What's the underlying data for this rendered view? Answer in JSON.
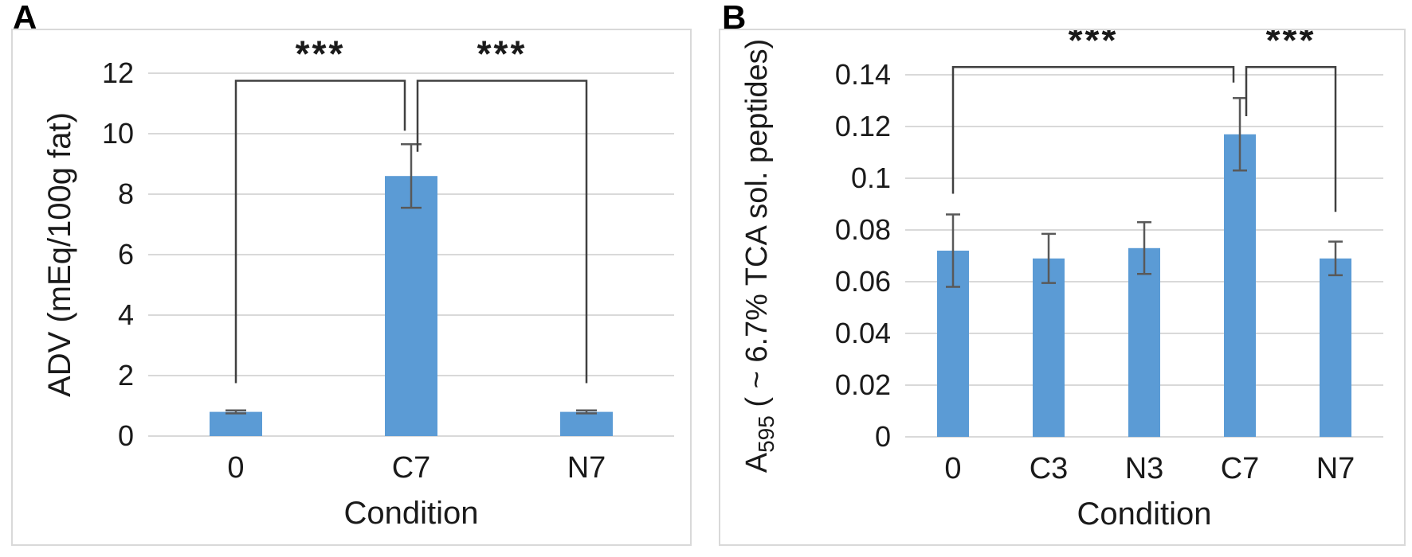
{
  "figure": {
    "background": "#ffffff",
    "bar_color": "#5B9BD5",
    "error_bar_color": "#595959",
    "bracket_color": "#404040",
    "gridline_color": "#d9d9d9",
    "panel_border_color": "#d9d9d9",
    "text_color": "#1a1a1a"
  },
  "chart_data": [
    {
      "type": "bar",
      "panel_label": "A",
      "title": "",
      "categories": [
        "0",
        "C7",
        "N7"
      ],
      "values": [
        0.8,
        8.6,
        0.8
      ],
      "errors": [
        0.05,
        1.05,
        0.05
      ],
      "xlabel": "Condition",
      "ylabel": "ADV (mEq/100g fat)",
      "ylim": [
        0,
        12
      ],
      "yticks": [
        0,
        2,
        4,
        6,
        8,
        10,
        12
      ],
      "ytick_labels": [
        "0",
        "2",
        "4",
        "6",
        "8",
        "10",
        "12"
      ],
      "grid": true,
      "legend": "none",
      "bar_color": "#5B9BD5",
      "significance": [
        {
          "from": "0",
          "to": "C7",
          "label": "***",
          "top": 11.75,
          "left_drop": 1.75,
          "right_drop": 10.1
        },
        {
          "from": "C7",
          "to": "N7",
          "label": "***",
          "top": 11.75,
          "left_drop": 9.4,
          "right_drop": 1.75
        }
      ]
    },
    {
      "type": "bar",
      "panel_label": "B",
      "title": "",
      "categories": [
        "0",
        "C3",
        "N3",
        "C7",
        "N7"
      ],
      "values": [
        0.072,
        0.069,
        0.073,
        0.117,
        0.069
      ],
      "errors": [
        0.014,
        0.0095,
        0.01,
        0.014,
        0.0065
      ],
      "xlabel": "Condition",
      "ylabel": "A595 ( ~ 6.7% TCA sol. peptides)",
      "ylabel_parts": {
        "prefix": "A",
        "subscript": "595",
        "suffix": " ( ~ 6.7% TCA sol. peptides)"
      },
      "ylim": [
        0,
        0.14
      ],
      "yticks": [
        0,
        0.02,
        0.04,
        0.06,
        0.08,
        0.1,
        0.12,
        0.14
      ],
      "ytick_labels": [
        "0",
        "0.02",
        "0.04",
        "0.06",
        "0.08",
        "0.1",
        "0.12",
        "0.14"
      ],
      "grid": true,
      "legend": "none",
      "bar_color": "#5B9BD5",
      "significance": [
        {
          "from": "0",
          "to": "C7",
          "label": "***",
          "top": 0.143,
          "left_drop": 0.094,
          "right_drop": 0.137
        },
        {
          "from": "C7",
          "to": "N7",
          "label": "***",
          "top": 0.143,
          "left_drop": 0.124,
          "right_drop": 0.087
        }
      ]
    }
  ]
}
